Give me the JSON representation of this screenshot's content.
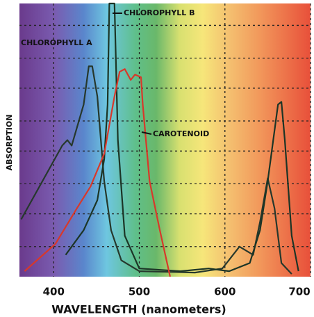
{
  "chart_data": {
    "type": "line",
    "x_label": "WAVELENGTH (nanometers)",
    "y_label": "ABSORPTION",
    "xlim": [
      360,
      700
    ],
    "xticks": [
      400,
      500,
      600,
      700
    ],
    "ylim": [
      0,
      100
    ],
    "yticks": [
      11,
      23,
      34,
      46,
      57,
      69,
      80,
      92
    ],
    "grid": true,
    "series": [
      {
        "name": "CHLOROPHYLL A",
        "color": "#26382c",
        "x": [
          362,
          410,
          416,
          421,
          435,
          441,
          445,
          451,
          459,
          467,
          479,
          500,
          565,
          597,
          617,
          633,
          641,
          650,
          658,
          666,
          678
        ],
        "values": [
          21,
          48,
          50,
          48,
          63,
          77,
          77,
          66,
          35,
          17,
          6,
          2,
          1.5,
          3,
          11,
          8,
          20,
          36,
          25,
          5,
          1
        ]
      },
      {
        "name": "CHLOROPHYLL B",
        "color": "#1c3526",
        "x": [
          414,
          435,
          451,
          459,
          463,
          465,
          471,
          475,
          483,
          500,
          548,
          581,
          605,
          629,
          641,
          650,
          662,
          666,
          670,
          678,
          686
        ],
        "values": [
          8,
          17,
          28,
          43,
          63,
          100,
          100,
          50,
          15,
          3,
          2,
          3,
          2,
          5,
          17,
          35,
          63,
          64,
          50,
          15,
          2
        ]
      },
      {
        "name": "CAROTENOID",
        "color": "#d8382a",
        "x": [
          366,
          402,
          427,
          443,
          459,
          471,
          477,
          483,
          490,
          495,
          502,
          504,
          512,
          524,
          536
        ],
        "values": [
          2,
          12,
          25,
          33,
          45,
          66,
          75,
          76,
          72,
          74,
          73,
          63,
          35,
          17,
          0
        ]
      }
    ]
  }
}
